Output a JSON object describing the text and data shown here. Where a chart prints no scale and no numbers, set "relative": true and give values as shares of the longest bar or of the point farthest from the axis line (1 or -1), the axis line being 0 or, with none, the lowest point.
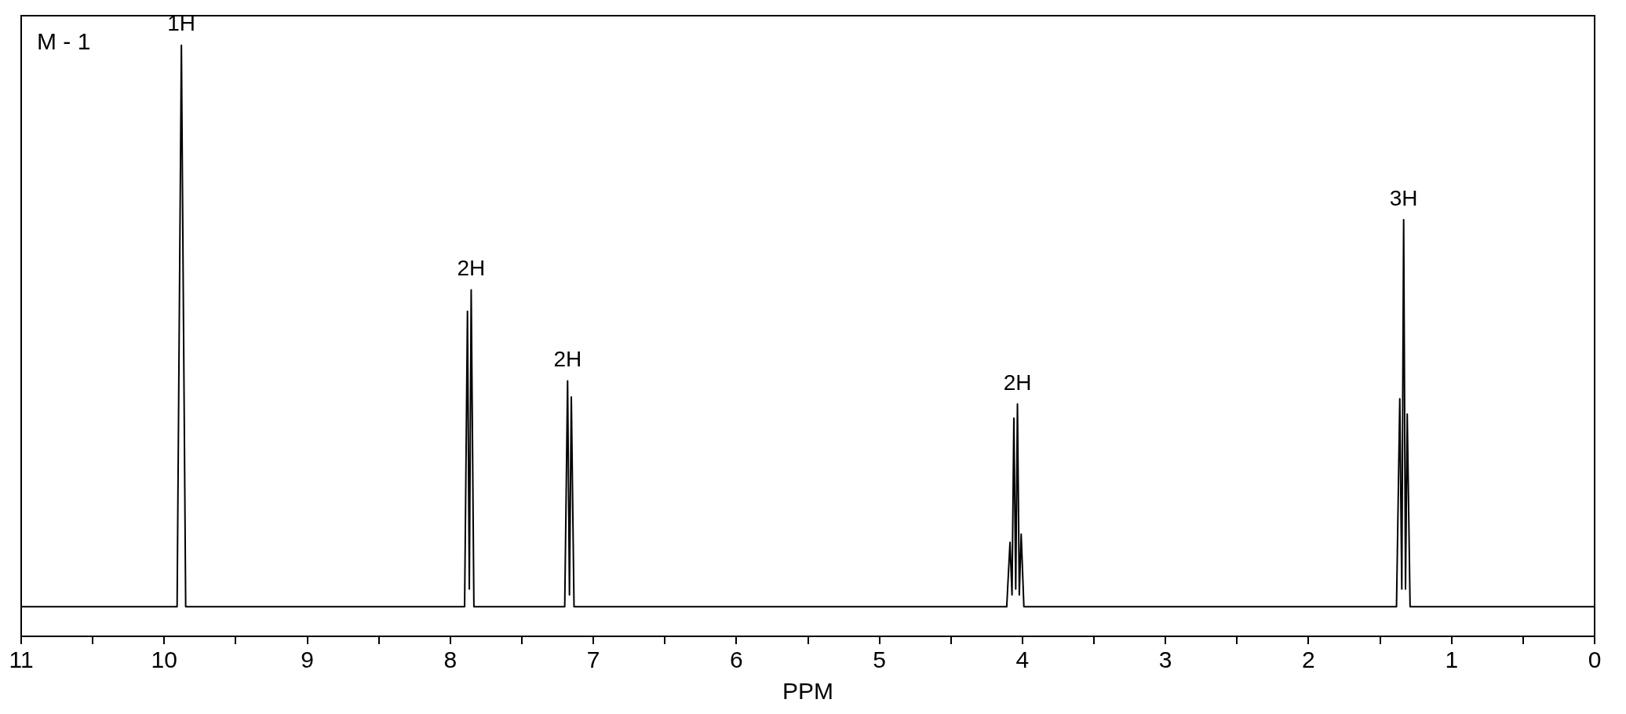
{
  "chart_data": {
    "type": "line",
    "title": "M - 1",
    "xlabel": "PPM",
    "relative": true,
    "xlim": [
      11,
      0
    ],
    "xticks": [
      11,
      {
        "value": 10.5,
        "label": null
      },
      10,
      {
        "value": 9.5,
        "label": null
      },
      9,
      {
        "value": 8.5,
        "label": null
      },
      8,
      {
        "value": 7.5,
        "label": null
      },
      7,
      {
        "value": 6.5,
        "label": null
      },
      6,
      {
        "value": 5.5,
        "label": null
      },
      5,
      {
        "value": 4.5,
        "label": null
      },
      4,
      {
        "value": 3.5,
        "label": null
      },
      3,
      {
        "value": 2.5,
        "label": null
      },
      2,
      {
        "value": 1.5,
        "label": null
      },
      1,
      {
        "value": 0.5,
        "label": null
      },
      0
    ],
    "grid": false,
    "legend": false,
    "marker": "none",
    "line_style": "solid",
    "series": [
      {
        "color": "#000000",
        "x": [
          11,
          9.91,
          9.88,
          9.85,
          7.9,
          7.88,
          7.867,
          7.854,
          7.835,
          7.2,
          7.18,
          7.167,
          7.154,
          7.135,
          4.11,
          4.087,
          4.073,
          4.06,
          4.047,
          4.035,
          4.022,
          4.009,
          3.99,
          1.385,
          1.362,
          1.348,
          1.335,
          1.322,
          1.31,
          1.29,
          0
        ],
        "values": [
          0.05,
          0.05,
          1.0,
          0.05,
          0.05,
          0.55,
          0.08,
          0.586,
          0.05,
          0.05,
          0.432,
          0.07,
          0.405,
          0.05,
          0.05,
          0.159,
          0.07,
          0.369,
          0.08,
          0.393,
          0.07,
          0.173,
          0.05,
          0.05,
          0.402,
          0.08,
          0.705,
          0.08,
          0.376,
          0.05,
          0.05
        ]
      }
    ],
    "annotations": [
      {
        "text": "1H",
        "x": 9.88,
        "y": 1.0
      },
      {
        "text": "2H",
        "x": 7.854,
        "y": 0.586
      },
      {
        "text": "2H",
        "x": 7.18,
        "y": 0.432
      },
      {
        "text": "2H",
        "x": 4.035,
        "y": 0.393
      },
      {
        "text": "3H",
        "x": 1.335,
        "y": 0.705
      }
    ]
  }
}
